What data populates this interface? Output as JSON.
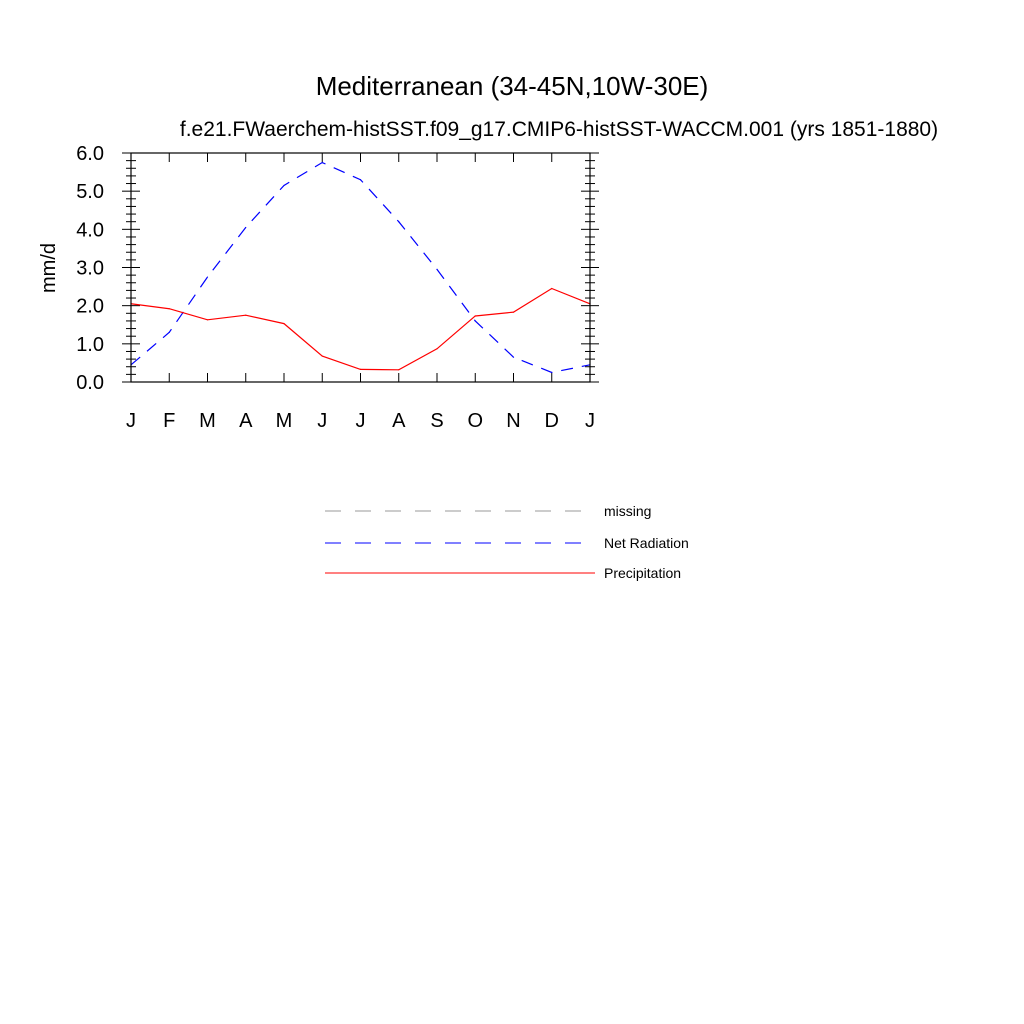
{
  "chart_data": {
    "type": "line",
    "title": "Mediterranean (34-45N,10W-30E)",
    "subtitle": "f.e21.FWaerchem-histSST.f09_g17.CMIP6-histSST-WACCM.001 (yrs 1851-1880)",
    "xlabel": "",
    "ylabel": "mm/d",
    "categories": [
      "J",
      "F",
      "M",
      "A",
      "M",
      "J",
      "J",
      "A",
      "S",
      "O",
      "N",
      "D",
      "J"
    ],
    "ylim": [
      0,
      6
    ],
    "yticks": [
      "0.0",
      "1.0",
      "2.0",
      "3.0",
      "4.0",
      "5.0",
      "6.0"
    ],
    "grid": false,
    "legend_position": "bottom-center",
    "series": [
      {
        "name": "Net Radiation",
        "color": "#0000ff",
        "style": "dashed",
        "values": [
          0.45,
          1.3,
          2.75,
          4.05,
          5.15,
          5.75,
          5.3,
          4.2,
          2.95,
          1.6,
          0.65,
          0.25,
          0.45
        ]
      },
      {
        "name": "Precipitation",
        "color": "#ff0000",
        "style": "solid",
        "values": [
          2.05,
          1.92,
          1.63,
          1.75,
          1.53,
          0.68,
          0.33,
          0.32,
          0.87,
          1.73,
          1.83,
          2.45,
          2.05
        ]
      }
    ],
    "legend": [
      {
        "label": "missing",
        "color": "#999999",
        "style": "dashed"
      },
      {
        "label": "Net Radiation",
        "color": "#0000ff",
        "style": "dashed"
      },
      {
        "label": "Precipitation",
        "color": "#ff0000",
        "style": "solid"
      }
    ]
  }
}
